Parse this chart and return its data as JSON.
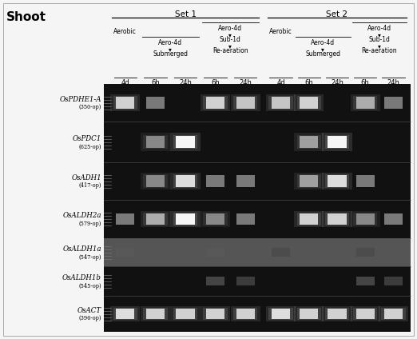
{
  "title": "Shoot",
  "fig_bg": "#f5f5f5",
  "gel_bg": "#111111",
  "aldh1a_bg": "#555555",
  "set1_label": "Set 1",
  "set2_label": "Set 2",
  "col_labels": [
    "4d",
    "6h",
    "24h",
    "6h",
    "24h",
    "4d",
    "6h",
    "24h",
    "6h",
    "24h"
  ],
  "genes": [
    {
      "name": "OsPDHE1-A",
      "bp": "(350-op)"
    },
    {
      "name": "OsPDC1",
      "bp": "(625-op)"
    },
    {
      "name": "OsADH1",
      "bp": "(417-op)"
    },
    {
      "name": "OsALDH2a",
      "bp": "(579-op)"
    },
    {
      "name": "OsALDH1a",
      "bp": "(547-op)",
      "special_bg": true
    },
    {
      "name": "OsALDH1b",
      "bp": "(545-op)"
    },
    {
      "name": "OsACT",
      "bp": "(396-op)"
    }
  ],
  "bands": {
    "OsPDHE1-A": [
      0.85,
      0.5,
      0.0,
      0.85,
      0.8,
      0.8,
      0.85,
      0.0,
      0.7,
      0.5
    ],
    "OsPDC1": [
      0.0,
      0.55,
      1.0,
      0.0,
      0.0,
      0.0,
      0.65,
      1.0,
      0.0,
      0.0
    ],
    "OsADH1": [
      0.0,
      0.55,
      0.9,
      0.5,
      0.5,
      0.0,
      0.65,
      0.9,
      0.5,
      0.0
    ],
    "OsALDH2a": [
      0.5,
      0.7,
      1.0,
      0.55,
      0.5,
      0.0,
      0.85,
      0.85,
      0.55,
      0.5
    ],
    "OsALDH1a": [
      0.35,
      0.0,
      0.0,
      0.35,
      0.0,
      0.3,
      0.0,
      0.0,
      0.3,
      0.0
    ],
    "OsALDH1b": [
      0.0,
      0.0,
      0.0,
      0.28,
      0.25,
      0.0,
      0.0,
      0.0,
      0.28,
      0.25
    ],
    "OsACT": [
      0.9,
      0.85,
      0.85,
      0.85,
      0.85,
      0.9,
      0.85,
      0.85,
      0.85,
      0.85
    ]
  }
}
